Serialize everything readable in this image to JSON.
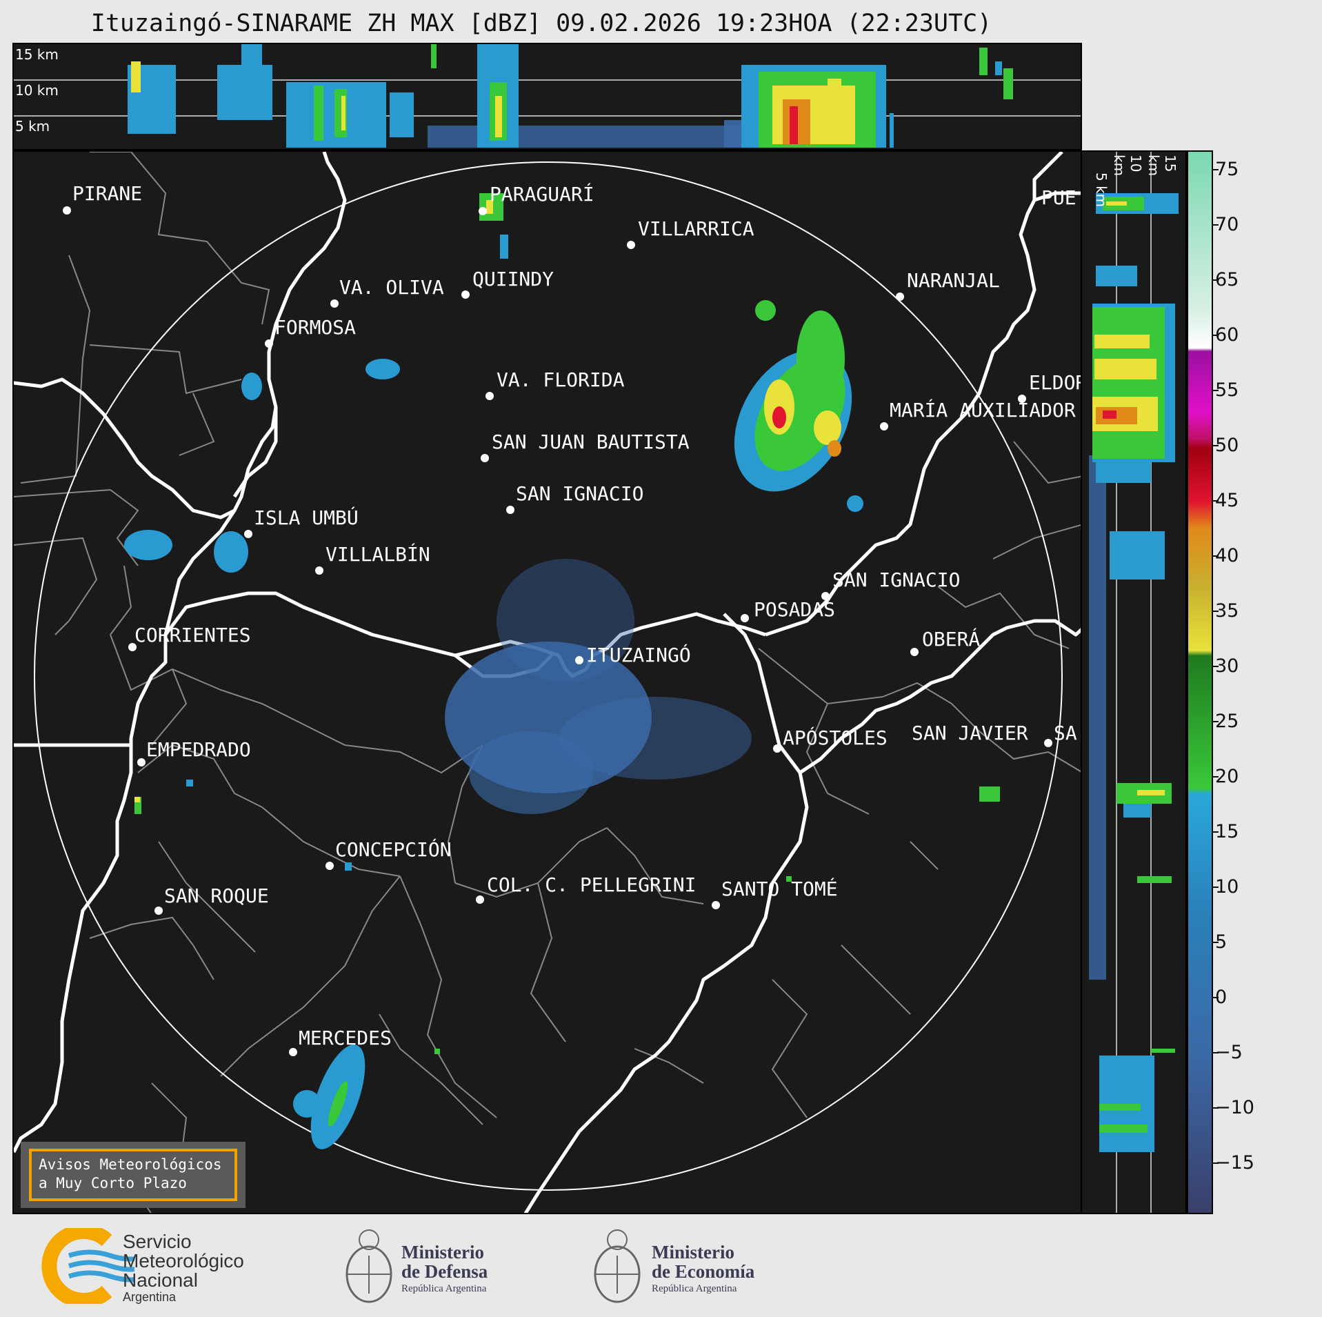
{
  "title": "Ituzaingó-SINARAME ZH MAX [dBZ] 09.02.2026 19:23HOA (22:23UTC)",
  "top_panel": {
    "levels": [
      "15 km",
      "10 km",
      "5 km"
    ]
  },
  "side_panel": {
    "levels": [
      "5 km",
      "10 km",
      "15 km"
    ]
  },
  "colorbar": {
    "ticks": [
      "75",
      "70",
      "65",
      "60",
      "55",
      "50",
      "45",
      "40",
      "35",
      "30",
      "25",
      "20",
      "15",
      "10",
      "5",
      "0",
      "−5",
      "−10",
      "−15"
    ],
    "colors": {
      "very_low": "#3a3f6a",
      "low_blue": "#3b6aa8",
      "blue": "#2a9bd0",
      "green": "#3ac83a",
      "dark_green": "#1f7a1f",
      "yellow": "#e8e23a",
      "orange": "#e08a1a",
      "red": "#e01530",
      "dark_red": "#a00010",
      "magenta": "#e010c8",
      "purple": "#9a10a0",
      "white": "#ffffff",
      "mint": "#7ad8b0"
    }
  },
  "cities": [
    {
      "name": "PIRANE"
    },
    {
      "name": "PARAGUARÍ"
    },
    {
      "name": "VILLARRICA"
    },
    {
      "name": "VA. OLIVA"
    },
    {
      "name": "QUIINDY"
    },
    {
      "name": "NARANJAL"
    },
    {
      "name": "FORMOSA"
    },
    {
      "name": "VA. FLORIDA"
    },
    {
      "name": "ELDOR"
    },
    {
      "name": "MARÍA AUXILIADOR"
    },
    {
      "name": "SAN JUAN BAUTISTA"
    },
    {
      "name": "SAN IGNACIO"
    },
    {
      "name": "ISLA UMBÚ"
    },
    {
      "name": "VILLALBÍN"
    },
    {
      "name": "SAN IGNACIO"
    },
    {
      "name": "POSADAS"
    },
    {
      "name": "CORRIENTES"
    },
    {
      "name": "ITUZAINGÓ"
    },
    {
      "name": "OBERÁ"
    },
    {
      "name": "EMPEDRADO"
    },
    {
      "name": "APÓSTOLES"
    },
    {
      "name": "SAN JAVIER"
    },
    {
      "name": "SA"
    },
    {
      "name": "CONCEPCIÓN"
    },
    {
      "name": "COL. C. PELLEGRINI"
    },
    {
      "name": "SANTO TOMÉ"
    },
    {
      "name": "SAN ROQUE"
    },
    {
      "name": "MERCEDES"
    },
    {
      "name": "PUE"
    }
  ],
  "notice": {
    "line1": "Avisos Meteorológicos",
    "line2": "a Muy Corto Plazo"
  },
  "logos": {
    "smn": {
      "line1": "Servicio",
      "line2": "Meteorológico",
      "line3": "Nacional",
      "line4": "Argentina"
    },
    "defensa": {
      "line1": "Ministerio",
      "line2": "de Defensa",
      "line3": "República Argentina"
    },
    "economia": {
      "line1": "Ministerio",
      "line2": "de Economía",
      "line3": "República Argentina"
    }
  }
}
